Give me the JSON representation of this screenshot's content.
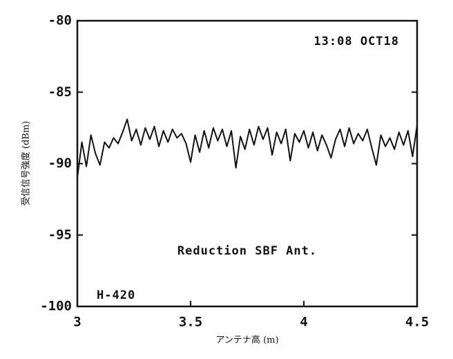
{
  "chart_data": {
    "type": "line",
    "xlabel": "アンテナ高 (m)",
    "ylabel": "受信信号強度 (dBm)",
    "annotations": [
      "13:08 OCT18",
      "Reduction SBF Ant.",
      "H-420"
    ],
    "color": "#111111",
    "xlim": [
      3,
      4.5
    ],
    "xticks": [
      3,
      3.5,
      4,
      4.5
    ],
    "ylim": [
      -100,
      -80
    ],
    "yticks": [
      -100,
      -95,
      -90,
      -85,
      -80
    ],
    "x": [
      3,
      3.02,
      3.04,
      3.06,
      3.08,
      3.1,
      3.12,
      3.14,
      3.16,
      3.18,
      3.2,
      3.22,
      3.24,
      3.26,
      3.28,
      3.3,
      3.32,
      3.34,
      3.36,
      3.38,
      3.4,
      3.42,
      3.44,
      3.46,
      3.48,
      3.5,
      3.52,
      3.54,
      3.56,
      3.58,
      3.6,
      3.62,
      3.64,
      3.66,
      3.68,
      3.7,
      3.72,
      3.74,
      3.76,
      3.78,
      3.8,
      3.82,
      3.84,
      3.86,
      3.88,
      3.9,
      3.92,
      3.94,
      3.96,
      3.98,
      4,
      4.02,
      4.04,
      4.06,
      4.08,
      4.1,
      4.12,
      4.14,
      4.16,
      4.18,
      4.2,
      4.22,
      4.24,
      4.26,
      4.28,
      4.3,
      4.32,
      4.34,
      4.36,
      4.38,
      4.4,
      4.42,
      4.44,
      4.46,
      4.48,
      4.5
    ],
    "values": [
      -91.0,
      -88.5,
      -90.2,
      -88.0,
      -89.3,
      -90.1,
      -88.5,
      -88.9,
      -88.2,
      -88.6,
      -87.8,
      -86.9,
      -88.4,
      -87.6,
      -88.7,
      -87.5,
      -88.3,
      -87.4,
      -88.8,
      -87.7,
      -88.5,
      -87.6,
      -88.2,
      -87.9,
      -88.6,
      -89.9,
      -88.0,
      -89.2,
      -87.7,
      -88.9,
      -87.5,
      -88.4,
      -87.6,
      -88.8,
      -87.7,
      -90.3,
      -88.1,
      -89.0,
      -87.6,
      -88.7,
      -87.4,
      -88.3,
      -87.5,
      -89.4,
      -87.8,
      -88.6,
      -87.6,
      -89.8,
      -87.9,
      -88.5,
      -87.7,
      -88.9,
      -87.8,
      -89.1,
      -88.0,
      -88.7,
      -89.6,
      -88.3,
      -87.6,
      -88.8,
      -87.5,
      -88.6,
      -87.9,
      -88.4,
      -87.6,
      -88.9,
      -90.1,
      -88.0,
      -88.8,
      -88.2,
      -89.0,
      -87.8,
      -88.7,
      -87.7,
      -89.5,
      -87.3
    ]
  }
}
